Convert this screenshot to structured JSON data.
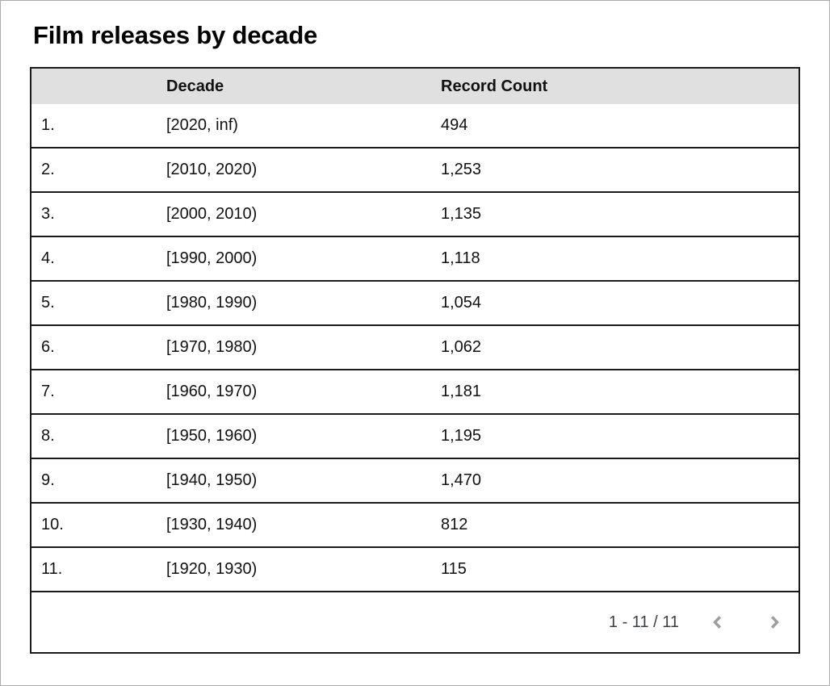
{
  "title": "Film releases by decade",
  "table": {
    "columns": {
      "decade": "Decade",
      "record_count": "Record Count"
    },
    "rows": [
      {
        "index": "1.",
        "decade": "[2020, inf)",
        "count": "494"
      },
      {
        "index": "2.",
        "decade": "[2010, 2020)",
        "count": "1,253"
      },
      {
        "index": "3.",
        "decade": "[2000, 2010)",
        "count": "1,135"
      },
      {
        "index": "4.",
        "decade": "[1990, 2000)",
        "count": "1,118"
      },
      {
        "index": "5.",
        "decade": "[1980, 1990)",
        "count": "1,054"
      },
      {
        "index": "6.",
        "decade": "[1970, 1980)",
        "count": "1,062"
      },
      {
        "index": "7.",
        "decade": "[1960, 1970)",
        "count": "1,181"
      },
      {
        "index": "8.",
        "decade": "[1950, 1960)",
        "count": "1,195"
      },
      {
        "index": "9.",
        "decade": "[1940, 1950)",
        "count": "1,470"
      },
      {
        "index": "10.",
        "decade": "[1930, 1940)",
        "count": "812"
      },
      {
        "index": "11.",
        "decade": "[1920, 1930)",
        "count": "115"
      }
    ]
  },
  "pagination": {
    "range": "1 - 11 / 11",
    "prev_icon": "chevron-left",
    "next_icon": "chevron-right"
  },
  "colors": {
    "header_bg": "#e0e0e0",
    "table_border": "#1a1a1a",
    "text": "#111111",
    "pagination_text": "#3c4043",
    "chevron": "#9e9e9e",
    "frame_border": "#aeaeae"
  },
  "chart_data": {
    "type": "table",
    "title": "Film releases by decade",
    "columns": [
      "Decade",
      "Record Count"
    ],
    "categories": [
      "[2020, inf)",
      "[2010, 2020)",
      "[2000, 2010)",
      "[1990, 2000)",
      "[1980, 1990)",
      "[1970, 1980)",
      "[1960, 1970)",
      "[1950, 1960)",
      "[1940, 1950)",
      "[1930, 1940)",
      "[1920, 1930)"
    ],
    "values": [
      494,
      1253,
      1135,
      1118,
      1054,
      1062,
      1181,
      1195,
      1470,
      812,
      115
    ],
    "rows_shown": "1 - 11 / 11"
  }
}
